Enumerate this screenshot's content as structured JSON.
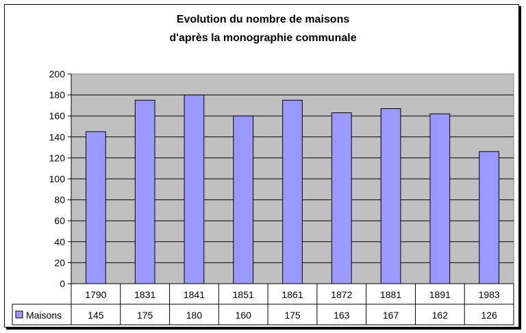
{
  "chart_data": {
    "type": "bar",
    "title": [
      "Evolution du nombre de maisons",
      "d'après la monographie communale"
    ],
    "categories": [
      "1790",
      "1831",
      "1841",
      "1851",
      "1861",
      "1872",
      "1881",
      "1891",
      "1983"
    ],
    "series": [
      {
        "name": "Maisons",
        "values": [
          145,
          175,
          180,
          160,
          175,
          163,
          167,
          162,
          126
        ],
        "color": "#9999ff"
      }
    ],
    "value_labels": [
      "145",
      "175",
      "180",
      "160",
      "175",
      "163",
      "167",
      "162",
      "126"
    ],
    "yticks": [
      "0",
      "20",
      "40",
      "60",
      "80",
      "100",
      "120",
      "140",
      "160",
      "180",
      "200"
    ],
    "ylim": [
      0,
      200
    ],
    "grid": true,
    "legend": "data-table",
    "plot_background": "#c0c0c0"
  }
}
